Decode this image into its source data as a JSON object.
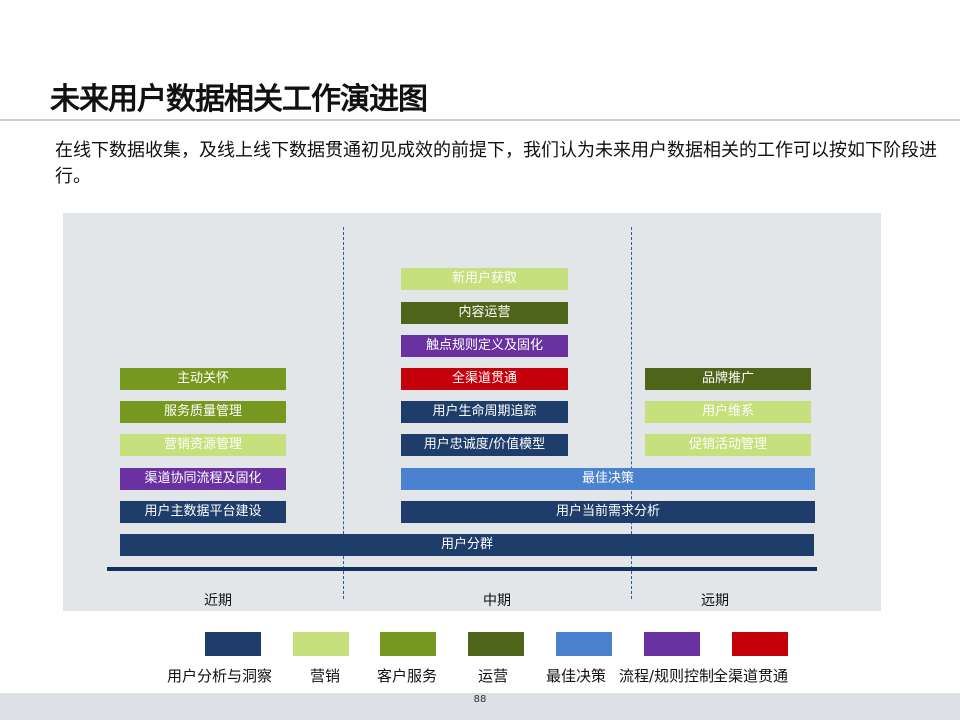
{
  "title": "未来用户数据相关工作演进图",
  "intro": "在线下数据收集，及线上线下数据贯通初见成效的前提下，我们认为未来用户数据相关的工作可以按如下阶段进行。",
  "phases": {
    "near": "近期",
    "mid": "中期",
    "far": "远期"
  },
  "boxes": {
    "near": [
      "主动关怀",
      "服务质量管理",
      "营销资源管理",
      "渠道协同流程及固化",
      "用户主数据平台建设"
    ],
    "mid": [
      "新用户获取",
      "内容运营",
      "触点规则定义及固化",
      "全渠道贯通",
      "用户生命周期追踪",
      "用户忠诚度/价值模型"
    ],
    "far": [
      "品牌推广",
      "用户维系",
      "促销活动管理"
    ],
    "wide": [
      "最佳决策",
      "用户当前需求分析",
      "用户分群"
    ]
  },
  "legend": [
    "用户分析与洞察",
    "营销",
    "客户服务",
    "运营",
    "最佳决策",
    "流程/规则控制",
    "全渠道贯通"
  ],
  "colors": {
    "analysis": "#1f3d6b",
    "marketing": "#c5e07c",
    "service": "#77981f",
    "operation": "#4e6419",
    "decision": "#4a82cf",
    "process": "#6a32a0",
    "omnichannel": "#c4000b"
  },
  "page_number": "88"
}
